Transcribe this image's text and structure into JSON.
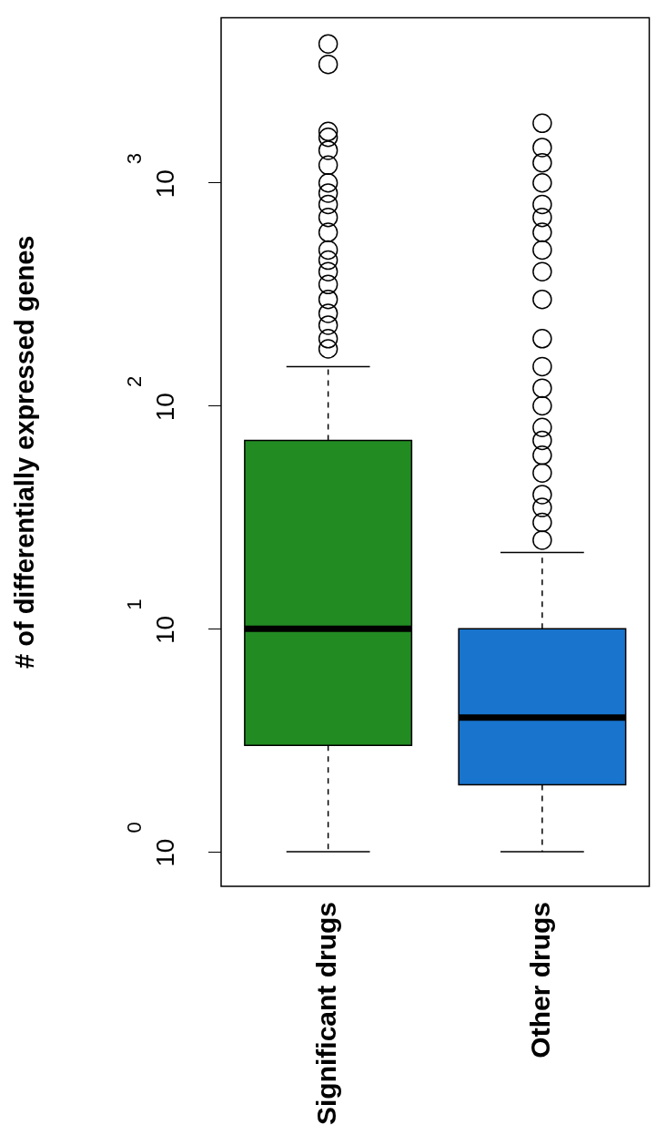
{
  "chart_data": {
    "type": "box",
    "ylabel": "# of differentially expressed genes",
    "categories": [
      "Significant drugs",
      "Other drugs"
    ],
    "colors": [
      "#228b22",
      "#1874cd"
    ],
    "boxes": [
      {
        "low": 1,
        "q1": 3,
        "median": 10,
        "q3": 70,
        "high": 150,
        "outliers": [
          180,
          200,
          230,
          260,
          300,
          350,
          400,
          450,
          500,
          600,
          700,
          800,
          900,
          1000,
          1200,
          1400,
          1600,
          1700,
          3400,
          4200
        ]
      },
      {
        "low": 1,
        "q1": 2,
        "median": 4,
        "q3": 10,
        "high": 22,
        "outliers": [
          25,
          30,
          35,
          40,
          50,
          60,
          70,
          80,
          100,
          120,
          150,
          200,
          300,
          400,
          500,
          600,
          700,
          800,
          1000,
          1230,
          1440,
          1850
        ]
      }
    ],
    "log": "y",
    "ylim": [
      0.73,
      5500
    ],
    "yticks": [
      {
        "value": 1,
        "label": "10$^{0}$"
      },
      {
        "value": 10,
        "label": "10$^{1}$"
      },
      {
        "value": 100,
        "label": "10$^{2}$"
      },
      {
        "value": 1000,
        "label": "10$^{3}$"
      }
    ],
    "marker": "circle"
  }
}
